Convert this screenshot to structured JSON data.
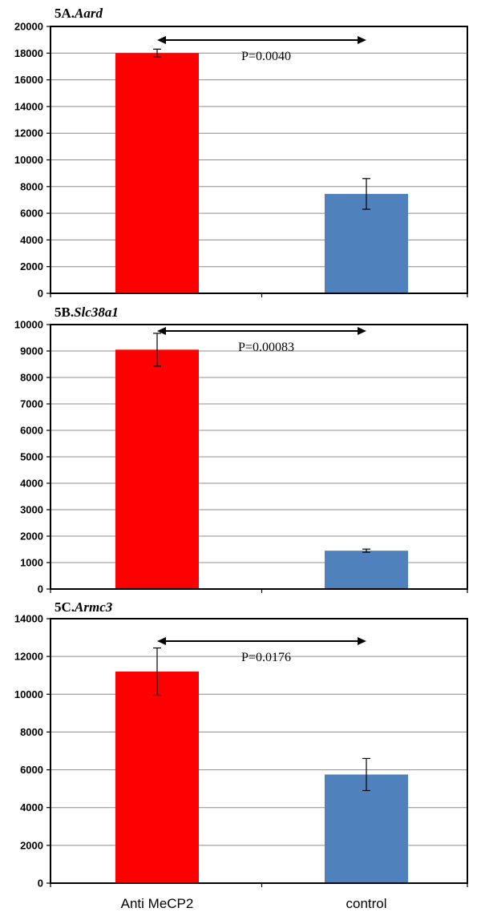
{
  "chart_data": [
    {
      "type": "bar",
      "title_prefix": "5A.",
      "title_gene": "Aard",
      "categories": [
        "Anti MeCP2",
        "control"
      ],
      "values": [
        18000,
        7450
      ],
      "error": [
        300,
        1150
      ],
      "colors": [
        "#ff0000",
        "#4f81bd"
      ],
      "ylim": [
        0,
        20000
      ],
      "yticks": [
        0,
        2000,
        4000,
        6000,
        8000,
        10000,
        12000,
        14000,
        16000,
        18000,
        20000
      ],
      "annotation": "P=0.0040",
      "grid": true
    },
    {
      "type": "bar",
      "title_prefix": "5B.",
      "title_gene": "Slc38a1",
      "categories": [
        "Anti MeCP2",
        "control"
      ],
      "values": [
        9050,
        1450
      ],
      "error": [
        620,
        60
      ],
      "colors": [
        "#ff0000",
        "#4f81bd"
      ],
      "ylim": [
        0,
        10000
      ],
      "yticks": [
        0,
        1000,
        2000,
        3000,
        4000,
        5000,
        6000,
        7000,
        8000,
        9000,
        10000
      ],
      "annotation": "P=0.00083",
      "grid": true
    },
    {
      "type": "bar",
      "title_prefix": "5C.",
      "title_gene": "Armc3",
      "categories": [
        "Anti MeCP2",
        "control"
      ],
      "values": [
        11200,
        5750
      ],
      "error": [
        1250,
        850
      ],
      "colors": [
        "#ff0000",
        "#4f81bd"
      ],
      "ylim": [
        0,
        14000
      ],
      "yticks": [
        0,
        2000,
        4000,
        6000,
        8000,
        10000,
        12000,
        14000
      ],
      "annotation": "P=0.0176",
      "grid": true
    }
  ],
  "xaxis": {
    "labels": [
      "Anti MeCP2",
      "control"
    ]
  }
}
